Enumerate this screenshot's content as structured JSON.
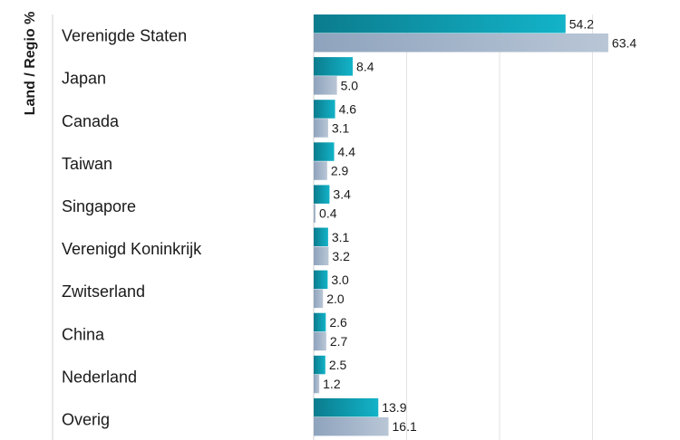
{
  "chart_data": {
    "type": "bar",
    "orientation": "horizontal",
    "ylabel": "Land / Regio %",
    "categories": [
      "Verenigde Staten",
      "Japan",
      "Canada",
      "Taiwan",
      "Singapore",
      "Verenigd Koninkrijk",
      "Zwitserland",
      "China",
      "Nederland",
      "Overig"
    ],
    "series": [
      {
        "values": [
          54.2,
          8.4,
          4.6,
          4.4,
          3.4,
          3.1,
          3.0,
          2.6,
          2.5,
          13.9
        ],
        "color": "#0a93a8"
      },
      {
        "values": [
          63.4,
          5.0,
          3.1,
          2.9,
          0.4,
          3.2,
          2.0,
          2.7,
          1.2,
          16.1
        ],
        "color": "#9fb1c9"
      }
    ],
    "xlim": [
      0,
      80
    ],
    "grid": true,
    "legend": "none"
  }
}
